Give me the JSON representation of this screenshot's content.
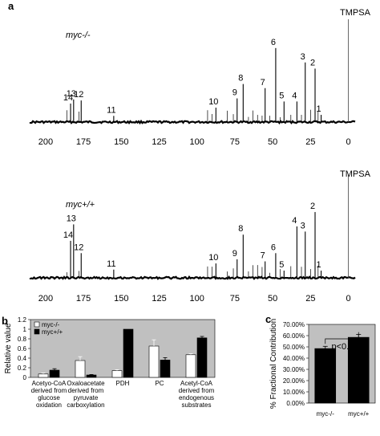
{
  "chart_data": [
    {
      "type": "line",
      "panel": "a",
      "label": "myc-/-",
      "reference_label": "TMPSA",
      "x_ticks": [
        200,
        175,
        150,
        125,
        100,
        75,
        50,
        25,
        0
      ],
      "xlim": [
        210,
        -5
      ],
      "peaks": [
        {
          "label": "14",
          "ppm": 183.5,
          "height": 0.18
        },
        {
          "label": "13",
          "ppm": 181.5,
          "height": 0.22
        },
        {
          "label": "12",
          "ppm": 176.5,
          "height": 0.21
        },
        {
          "label": "11",
          "ppm": 155.0,
          "height": 0.06
        },
        {
          "label": "10",
          "ppm": 87.5,
          "height": 0.14
        },
        {
          "label": "9",
          "ppm": 73.5,
          "height": 0.23
        },
        {
          "label": "8",
          "ppm": 69.5,
          "height": 0.37
        },
        {
          "label": "7",
          "ppm": 55.0,
          "height": 0.33
        },
        {
          "label": "6",
          "ppm": 48.0,
          "height": 0.72
        },
        {
          "label": "5",
          "ppm": 42.5,
          "height": 0.2
        },
        {
          "label": "4",
          "ppm": 34.0,
          "height": 0.2
        },
        {
          "label": "3",
          "ppm": 28.5,
          "height": 0.58
        },
        {
          "label": "2",
          "ppm": 22.0,
          "height": 0.52
        },
        {
          "label": "1",
          "ppm": 18.0,
          "height": 0.07
        },
        {
          "label": "",
          "ppm": 0.0,
          "height": 1.0
        }
      ]
    },
    {
      "type": "line",
      "panel": "a",
      "label": "myc+/+",
      "reference_label": "TMPSA",
      "x_ticks": [
        200,
        175,
        150,
        125,
        100,
        75,
        50,
        25,
        0
      ],
      "xlim": [
        210,
        -5
      ],
      "peaks": [
        {
          "label": "14",
          "ppm": 183.5,
          "height": 0.36
        },
        {
          "label": "13",
          "ppm": 181.5,
          "height": 0.52
        },
        {
          "label": "12",
          "ppm": 176.5,
          "height": 0.24
        },
        {
          "label": "11",
          "ppm": 155.0,
          "height": 0.08
        },
        {
          "label": "10",
          "ppm": 87.5,
          "height": 0.14
        },
        {
          "label": "9",
          "ppm": 73.5,
          "height": 0.18
        },
        {
          "label": "8",
          "ppm": 69.5,
          "height": 0.42
        },
        {
          "label": "7",
          "ppm": 55.0,
          "height": 0.16
        },
        {
          "label": "6",
          "ppm": 48.0,
          "height": 0.24
        },
        {
          "label": "5",
          "ppm": 42.5,
          "height": 0.07
        },
        {
          "label": "4",
          "ppm": 34.0,
          "height": 0.5
        },
        {
          "label": "3",
          "ppm": 28.5,
          "height": 0.45
        },
        {
          "label": "2",
          "ppm": 22.0,
          "height": 0.64
        },
        {
          "label": "1",
          "ppm": 18.0,
          "height": 0.07
        },
        {
          "label": "",
          "ppm": 0.0,
          "height": 1.0
        }
      ]
    },
    {
      "type": "bar",
      "panel": "b",
      "ylabel": "Relative value",
      "ylim": [
        0,
        1.2
      ],
      "y_ticks": [
        "0",
        "0.2",
        "0.4",
        "0.6",
        "0.8",
        "1",
        "1.2"
      ],
      "categories": [
        [
          "Acetyo-CoA",
          "derived from",
          "glucose",
          "oxidation"
        ],
        [
          "Oxaloacetate",
          "derived from",
          "pyruvate",
          "carboxylation"
        ],
        [
          "PDH"
        ],
        [
          "PC"
        ],
        [
          "Acetyl-CoA",
          "derived from",
          "endogenous",
          "substrates"
        ]
      ],
      "series": [
        {
          "name": "myc-/-",
          "color": "#ffffff",
          "values": [
            0.07,
            0.35,
            0.14,
            0.65,
            0.47
          ],
          "errors": [
            0.02,
            0.08,
            0.02,
            0.13,
            0.02
          ]
        },
        {
          "name": "myc+/+",
          "color": "#000000",
          "values": [
            0.15,
            0.05,
            1.0,
            0.36,
            0.82
          ],
          "errors": [
            0.03,
            0.01,
            0.0,
            0.05,
            0.03
          ]
        }
      ],
      "legend": "top-left",
      "background": "#c0c0c0"
    },
    {
      "type": "bar",
      "panel": "c",
      "ylabel": "% Fractional Contribution",
      "ylim": [
        0,
        70
      ],
      "y_ticks": [
        "0.00%",
        "10.00%",
        "20.00%",
        "30.00%",
        "40.00%",
        "50.00%",
        "60.00%",
        "70.00%"
      ],
      "categories": [
        "myc-/-",
        "myc+/+"
      ],
      "values": [
        48.5,
        58.5
      ],
      "errors": [
        2.0,
        2.5
      ],
      "color": "#000000",
      "annotation": "p<0.05",
      "background": "#c0c0c0"
    }
  ],
  "panel_letters": [
    "a",
    "b",
    "c"
  ]
}
